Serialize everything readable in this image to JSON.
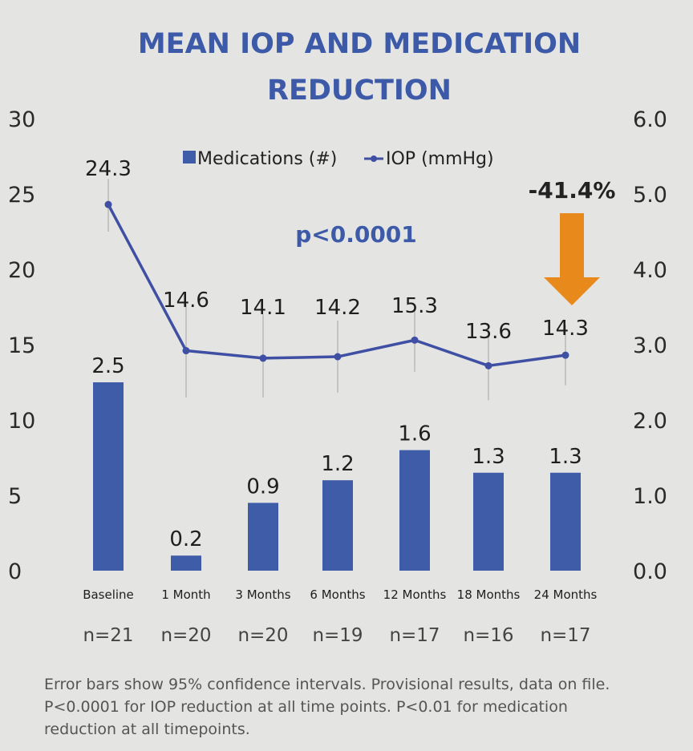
{
  "chart_data": {
    "type": "bar+line",
    "title_lines": [
      "MEAN IOP AND MEDICATION",
      "REDUCTION"
    ],
    "categories": [
      "Baseline",
      "1 Month",
      "3 Months",
      "6 Months",
      "12 Months",
      "18 Months",
      "24 Months"
    ],
    "series": [
      {
        "name": "Medications (#)",
        "kind": "bar",
        "axis": "right",
        "values": [
          2.5,
          0.2,
          0.9,
          1.2,
          1.6,
          1.3,
          1.3
        ],
        "labels": [
          "2.5",
          "0.2",
          "0.9",
          "1.2",
          "1.6",
          "1.3",
          "1.3"
        ],
        "color": "#3f5ca8"
      },
      {
        "name": "IOP (mmHg)",
        "kind": "line",
        "axis": "left",
        "values": [
          24.3,
          14.6,
          14.1,
          14.2,
          15.3,
          13.6,
          14.3
        ],
        "labels": [
          "24.3",
          "14.6",
          "14.1",
          "14.2",
          "15.3",
          "13.6",
          "14.3"
        ],
        "ci_low": [
          22.5,
          11.5,
          11.5,
          11.8,
          13.2,
          11.3,
          12.3
        ],
        "ci_high": [
          26.0,
          17.7,
          17.0,
          16.6,
          17.5,
          16.0,
          16.3
        ],
        "color": "#3f4fa3"
      }
    ],
    "y_left": {
      "min": 0,
      "max": 30,
      "ticks": [
        "0",
        "5",
        "10",
        "15",
        "20",
        "25",
        "30"
      ]
    },
    "y_right": {
      "min": 0,
      "max": 6,
      "ticks": [
        "0.0",
        "1.0",
        "2.0",
        "3.0",
        "4.0",
        "5.0",
        "6.0"
      ]
    },
    "n_labels": [
      "n=21",
      "n=20",
      "n=20",
      "n=19",
      "n=17",
      "n=16",
      "n=17"
    ],
    "legend_legend_position": "top-center",
    "annotations": {
      "p_value": "p<0.0001",
      "reduction": "-41.4%"
    },
    "arrow_color": "#e8891c",
    "grid": false
  },
  "footnote": [
    "Error bars show 95% confidence intervals. Provisional results, data on file.",
    "P<0.0001 for IOP reduction at all time points. P<0.01 for medication",
    "reduction at all timepoints."
  ]
}
